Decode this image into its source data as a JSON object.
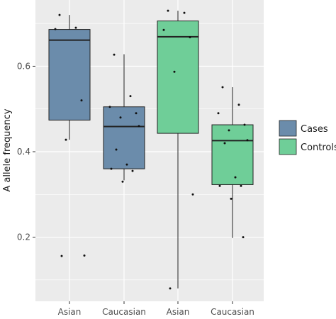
{
  "chart_data": {
    "type": "boxplot",
    "title": "",
    "xlabel": "",
    "ylabel": "A allele frequency",
    "ylim": [
      0.05,
      0.755
    ],
    "y_ticks": [
      0.2,
      0.4,
      0.6
    ],
    "y_tick_labels": [
      "0.2",
      "0.4",
      "0.6"
    ],
    "categories": [
      "Asian",
      "Caucasian",
      "Asian",
      "Caucasian"
    ],
    "grid": true,
    "legend_position": "right",
    "series": [
      {
        "name": "Cases",
        "color": "#6b8cab",
        "boxes": [
          {
            "position": 1,
            "whisker_low": 0.428,
            "q1": 0.474,
            "median": 0.661,
            "q3": 0.686,
            "whisker_high": 0.72,
            "points": [
              0.72,
              0.69,
              0.687,
              0.52,
              0.428,
              0.157,
              0.156
            ]
          },
          {
            "position": 2,
            "whisker_low": 0.333,
            "q1": 0.36,
            "median": 0.459,
            "q3": 0.505,
            "whisker_high": 0.628,
            "points": [
              0.627,
              0.53,
              0.505,
              0.49,
              0.48,
              0.46,
              0.405,
              0.37,
              0.36,
              0.355,
              0.33
            ]
          }
        ]
      },
      {
        "name": "Controls",
        "color": "#6fce98",
        "boxes": [
          {
            "position": 3,
            "whisker_low": 0.08,
            "q1": 0.443,
            "median": 0.669,
            "q3": 0.706,
            "whisker_high": 0.73,
            "points": [
              0.73,
              0.725,
              0.685,
              0.668,
              0.587,
              0.3,
              0.08
            ]
          },
          {
            "position": 4,
            "whisker_low": 0.198,
            "q1": 0.323,
            "median": 0.426,
            "q3": 0.463,
            "whisker_high": 0.551,
            "points": [
              0.551,
              0.51,
              0.49,
              0.463,
              0.45,
              0.427,
              0.42,
              0.34,
              0.32,
              0.32,
              0.29,
              0.2
            ]
          }
        ]
      }
    ]
  },
  "style": {
    "panel_background": "#ebebeb",
    "grid_color": "#ffffff",
    "box_outline": "#222222",
    "point_color": "#111111"
  }
}
